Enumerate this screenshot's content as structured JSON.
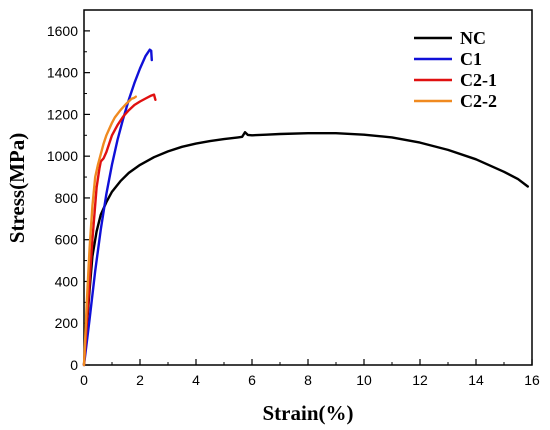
{
  "chart_data": {
    "type": "line",
    "title": "",
    "xlabel": "Strain(%)",
    "ylabel": "Stress(MPa)",
    "xlim": [
      0,
      16
    ],
    "ylim": [
      0,
      1700
    ],
    "xticks": [
      0,
      2,
      4,
      6,
      8,
      10,
      12,
      14,
      16
    ],
    "yticks": [
      0,
      200,
      400,
      600,
      800,
      1000,
      1200,
      1400,
      1600
    ],
    "legend_position": "top-right",
    "grid": false,
    "series": [
      {
        "name": "NC",
        "color": "#000000",
        "x": [
          0,
          0.1,
          0.2,
          0.3,
          0.45,
          0.6,
          0.8,
          1.0,
          1.3,
          1.6,
          2.0,
          2.5,
          3.0,
          3.5,
          4.0,
          4.5,
          5.0,
          5.5,
          5.65,
          5.75,
          5.85,
          6.0,
          6.5,
          7.0,
          8.0,
          9.0,
          10.0,
          11.0,
          12.0,
          13.0,
          14.0,
          15.0,
          15.5,
          15.85
        ],
        "y": [
          0,
          180,
          360,
          520,
          640,
          720,
          780,
          830,
          880,
          920,
          958,
          995,
          1023,
          1045,
          1060,
          1072,
          1082,
          1090,
          1093,
          1115,
          1102,
          1100,
          1103,
          1106,
          1110,
          1110,
          1103,
          1090,
          1065,
          1030,
          985,
          925,
          890,
          855
        ]
      },
      {
        "name": "C1",
        "color": "#1010d8",
        "x": [
          0,
          0.2,
          0.4,
          0.6,
          0.8,
          1.0,
          1.2,
          1.4,
          1.6,
          1.8,
          2.0,
          2.2,
          2.35,
          2.4,
          2.42
        ],
        "y": [
          0,
          220,
          450,
          650,
          820,
          960,
          1080,
          1180,
          1270,
          1350,
          1420,
          1480,
          1510,
          1505,
          1460
        ]
      },
      {
        "name": "C2-1",
        "color": "#e01010",
        "x": [
          0,
          0.15,
          0.3,
          0.45,
          0.55,
          0.6,
          0.7,
          0.8,
          0.9,
          1.0,
          1.2,
          1.4,
          1.6,
          1.8,
          2.0,
          2.2,
          2.4,
          2.5,
          2.55
        ],
        "y": [
          0,
          300,
          600,
          850,
          940,
          975,
          990,
          1020,
          1060,
          1100,
          1150,
          1190,
          1220,
          1245,
          1262,
          1276,
          1290,
          1295,
          1270
        ]
      },
      {
        "name": "C2-2",
        "color": "#f08a20",
        "x": [
          0,
          0.1,
          0.2,
          0.3,
          0.4,
          0.5,
          0.6,
          0.7,
          0.8,
          0.9,
          1.0,
          1.1,
          1.3,
          1.5,
          1.7,
          1.8,
          1.85
        ],
        "y": [
          0,
          300,
          560,
          760,
          900,
          960,
          1010,
          1060,
          1100,
          1130,
          1160,
          1185,
          1220,
          1250,
          1275,
          1280,
          1285
        ]
      }
    ]
  }
}
